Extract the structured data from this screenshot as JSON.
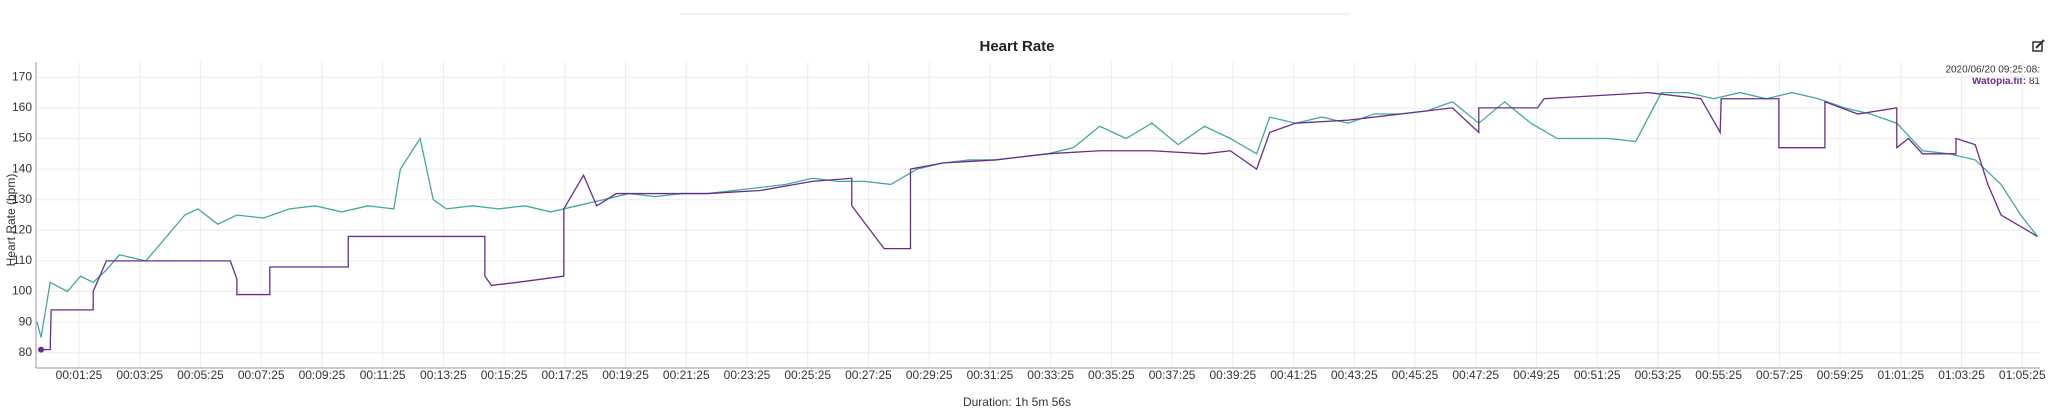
{
  "chart_data": {
    "type": "line",
    "title": "Heart Rate",
    "y_label": "Heart Rate (bpm)",
    "x_label": "Duration: 1h 5m 56s",
    "xlim": [
      0,
      3960
    ],
    "ylim": [
      75,
      175
    ],
    "xticks": [
      {
        "value": 85,
        "label": "00:01:25"
      },
      {
        "value": 205,
        "label": "00:03:25"
      },
      {
        "value": 325,
        "label": "00:05:25"
      },
      {
        "value": 445,
        "label": "00:07:25"
      },
      {
        "value": 565,
        "label": "00:09:25"
      },
      {
        "value": 685,
        "label": "00:11:25"
      },
      {
        "value": 805,
        "label": "00:13:25"
      },
      {
        "value": 925,
        "label": "00:15:25"
      },
      {
        "value": 1045,
        "label": "00:17:25"
      },
      {
        "value": 1165,
        "label": "00:19:25"
      },
      {
        "value": 1285,
        "label": "00:21:25"
      },
      {
        "value": 1405,
        "label": "00:23:25"
      },
      {
        "value": 1525,
        "label": "00:25:25"
      },
      {
        "value": 1645,
        "label": "00:27:25"
      },
      {
        "value": 1765,
        "label": "00:29:25"
      },
      {
        "value": 1885,
        "label": "00:31:25"
      },
      {
        "value": 2005,
        "label": "00:33:25"
      },
      {
        "value": 2125,
        "label": "00:35:25"
      },
      {
        "value": 2245,
        "label": "00:37:25"
      },
      {
        "value": 2365,
        "label": "00:39:25"
      },
      {
        "value": 2485,
        "label": "00:41:25"
      },
      {
        "value": 2605,
        "label": "00:43:25"
      },
      {
        "value": 2725,
        "label": "00:45:25"
      },
      {
        "value": 2845,
        "label": "00:47:25"
      },
      {
        "value": 2965,
        "label": "00:49:25"
      },
      {
        "value": 3085,
        "label": "00:51:25"
      },
      {
        "value": 3205,
        "label": "00:53:25"
      },
      {
        "value": 3325,
        "label": "00:55:25"
      },
      {
        "value": 3445,
        "label": "00:57:25"
      },
      {
        "value": 3565,
        "label": "00:59:25"
      },
      {
        "value": 3685,
        "label": "01:01:25"
      },
      {
        "value": 3805,
        "label": "01:03:25"
      },
      {
        "value": 3925,
        "label": "01:05:25"
      }
    ],
    "yticks": [
      80,
      90,
      100,
      110,
      120,
      130,
      140,
      150,
      160,
      170
    ],
    "grid": true,
    "series": [
      {
        "color": "#3fa9a2",
        "x": [
          2,
          10,
          28,
          62,
          88,
          113,
          139,
          165,
          217,
          243,
          294,
          320,
          359,
          397,
          449,
          501,
          552,
          604,
          656,
          707,
          720,
          759,
          785,
          811,
          862,
          914,
          966,
          1017,
          1069,
          1121,
          1172,
          1224,
          1276,
          1327,
          1379,
          1431,
          1482,
          1534,
          1586,
          1637,
          1689,
          1741,
          1792,
          1844,
          1896,
          1947,
          1999,
          2050,
          2102,
          2154,
          2205,
          2257,
          2309,
          2360,
          2412,
          2438,
          2489,
          2541,
          2593,
          2644,
          2696,
          2748,
          2799,
          2851,
          2902,
          2954,
          3006,
          3057,
          3109,
          3161,
          3212,
          3264,
          3315,
          3367,
          3419,
          3470,
          3522,
          3574,
          3625,
          3677,
          3728,
          3780,
          3832,
          3883,
          3922,
          3955
        ],
        "values": [
          90,
          85,
          103,
          100,
          105,
          103,
          107,
          112,
          110,
          115,
          125,
          127,
          122,
          125,
          124,
          127,
          128,
          126,
          128,
          127,
          140,
          150,
          130,
          127,
          128,
          127,
          128,
          126,
          128,
          130,
          132,
          131,
          132,
          132,
          133,
          134,
          135,
          137,
          136,
          136,
          135,
          140,
          142,
          143,
          143,
          144,
          145,
          147,
          154,
          150,
          155,
          148,
          154,
          150,
          145,
          157,
          155,
          157,
          155,
          158,
          158,
          159,
          162,
          155,
          162,
          155,
          150,
          150,
          150,
          149,
          165,
          165,
          163,
          165,
          163,
          165,
          163,
          160,
          158,
          155,
          146,
          145,
          143,
          135,
          125,
          118
        ]
      },
      {
        "color": "#6a2c8c",
        "x": [
          10,
          28,
          30,
          54,
          113,
          113,
          139,
          384,
          397,
          397,
          462,
          462,
          617,
          617,
          887,
          887,
          900,
          952,
          1043,
          1043,
          1082,
          1108,
          1147,
          1224,
          1327,
          1431,
          1534,
          1612,
          1612,
          1676,
          1728,
          1728,
          1792,
          1896,
          1999,
          2102,
          2205,
          2309,
          2360,
          2412,
          2438,
          2489,
          2593,
          2696,
          2799,
          2851,
          2851,
          2967,
          2980,
          3186,
          3290,
          3328,
          3330,
          3444,
          3444,
          3535,
          3535,
          3600,
          3677,
          3677,
          3700,
          3728,
          3794,
          3794,
          3832,
          3857,
          3883,
          3955
        ],
        "values": [
          81,
          81,
          94,
          94,
          94,
          100,
          110,
          110,
          104,
          99,
          99,
          108,
          108,
          118,
          118,
          105,
          102,
          103,
          105,
          127,
          138,
          128,
          132,
          132,
          132,
          133,
          136,
          137,
          128,
          114,
          114,
          140,
          142,
          143,
          145,
          146,
          146,
          145,
          146,
          140,
          152,
          155,
          156,
          158,
          160,
          152,
          160,
          160,
          163,
          165,
          163,
          152,
          163,
          163,
          147,
          147,
          162,
          158,
          160,
          147,
          150,
          145,
          145,
          150,
          148,
          135,
          125,
          118
        ]
      }
    ],
    "tooltip": {
      "date": "2020/06/20 09:25:08:",
      "name": "Watopia.fit:",
      "value": 81
    }
  }
}
